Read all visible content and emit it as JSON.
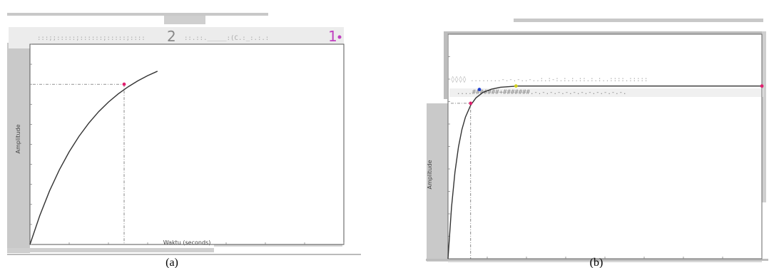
{
  "chart_data": [
    {
      "type": "line",
      "panel": "a",
      "caption": "(a)",
      "xlabel": "Waktu (seconds)",
      "ylabel": "Amplitude",
      "legend_text": "2 ... 1",
      "legend_digits": [
        "2",
        "1"
      ],
      "xlim": [
        0,
        1.6
      ],
      "ylim": [
        0,
        1
      ],
      "x": [
        0,
        0.05,
        0.1,
        0.15,
        0.2,
        0.25,
        0.3,
        0.35,
        0.4,
        0.45,
        0.5,
        0.55,
        0.6,
        0.65
      ],
      "series": [
        {
          "values": [
            0,
            0.144,
            0.268,
            0.373,
            0.463,
            0.54,
            0.606,
            0.663,
            0.711,
            0.752,
            0.787,
            0.817,
            0.843,
            0.865
          ],
          "color": "#333333"
        }
      ],
      "markers": [
        {
          "x": 0.48,
          "y": 0.8,
          "color": "#e0206e"
        }
      ],
      "grid": false,
      "colors": {
        "trace": "#333333",
        "marker": "#e0206e",
        "guide": "#555555",
        "accent": "#c040c0"
      }
    },
    {
      "type": "line",
      "panel": "b",
      "caption": "(b)",
      "xlabel": "",
      "ylabel": "Amplitude",
      "xlim": [
        0,
        1.8
      ],
      "ylim": [
        0,
        1.3
      ],
      "x": [
        0,
        0.02,
        0.04,
        0.06,
        0.08,
        0.1,
        0.13,
        0.16,
        0.2,
        0.25,
        0.3,
        0.4,
        0.6,
        1.0,
        1.8
      ],
      "series": [
        {
          "values": [
            0,
            0.296,
            0.502,
            0.647,
            0.749,
            0.82,
            0.889,
            0.931,
            0.963,
            0.982,
            0.993,
            1.0,
            1.0,
            1.0,
            1.0
          ],
          "color": "#333333"
        }
      ],
      "markers": [
        {
          "x": 0.13,
          "y": 0.9,
          "color": "#e0206e"
        },
        {
          "x": 0.18,
          "y": 0.98,
          "color": "#2040d0"
        },
        {
          "x": 0.39,
          "y": 1.0,
          "color": "#d0d020"
        },
        {
          "x": 1.8,
          "y": 1.0,
          "color": "#e0206e"
        }
      ],
      "grid": false,
      "colors": {
        "trace": "#333333",
        "marker": "#e0206e",
        "guide": "#555555"
      }
    }
  ]
}
